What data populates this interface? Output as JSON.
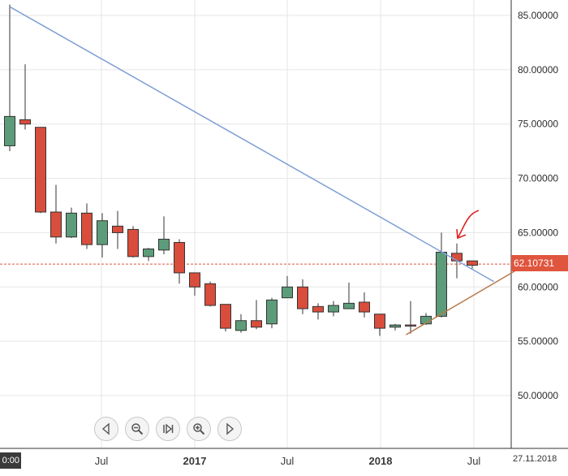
{
  "chart_data": {
    "type": "candlestick",
    "x_tick_labels": [
      "Jul",
      "2017",
      "Jul",
      "2018",
      "Jul"
    ],
    "y_tick_labels": [
      "50.00000",
      "55.00000",
      "60.00000",
      "65.00000",
      "70.00000",
      "75.00000",
      "80.00000",
      "85.00000"
    ],
    "ylim": [
      46.0,
      87.0
    ],
    "grid": true,
    "last_price": "62.10731",
    "last_price_value": 62.10731,
    "bottom_left_label": "0:00",
    "bottom_right_label": "27.11.2018",
    "candles": [
      {
        "o": 73.0,
        "h": 86.0,
        "l": 72.5,
        "c": 75.7
      },
      {
        "o": 75.4,
        "h": 80.5,
        "l": 74.5,
        "c": 75.0
      },
      {
        "o": 74.7,
        "h": 74.7,
        "l": 66.8,
        "c": 66.9
      },
      {
        "o": 66.9,
        "h": 69.4,
        "l": 64.0,
        "c": 64.6
      },
      {
        "o": 64.6,
        "h": 67.3,
        "l": 64.5,
        "c": 66.8
      },
      {
        "o": 66.8,
        "h": 67.7,
        "l": 63.5,
        "c": 63.9
      },
      {
        "o": 63.9,
        "h": 66.8,
        "l": 62.7,
        "c": 66.1
      },
      {
        "o": 65.6,
        "h": 67.0,
        "l": 63.5,
        "c": 65.0
      },
      {
        "o": 65.3,
        "h": 65.6,
        "l": 62.7,
        "c": 62.8
      },
      {
        "o": 62.8,
        "h": 63.6,
        "l": 62.4,
        "c": 63.5
      },
      {
        "o": 63.4,
        "h": 66.5,
        "l": 63.0,
        "c": 64.4
      },
      {
        "o": 64.1,
        "h": 64.4,
        "l": 60.3,
        "c": 61.3
      },
      {
        "o": 61.3,
        "h": 61.3,
        "l": 59.2,
        "c": 60.0
      },
      {
        "o": 60.3,
        "h": 60.5,
        "l": 58.2,
        "c": 58.3
      },
      {
        "o": 58.4,
        "h": 58.4,
        "l": 55.9,
        "c": 56.2
      },
      {
        "o": 56.0,
        "h": 57.5,
        "l": 55.8,
        "c": 56.9
      },
      {
        "o": 56.9,
        "h": 58.8,
        "l": 56.1,
        "c": 56.3
      },
      {
        "o": 56.6,
        "h": 59.0,
        "l": 56.2,
        "c": 58.8
      },
      {
        "o": 59.0,
        "h": 61.0,
        "l": 59.0,
        "c": 60.0
      },
      {
        "o": 60.0,
        "h": 60.7,
        "l": 57.5,
        "c": 58.0
      },
      {
        "o": 58.2,
        "h": 58.5,
        "l": 57.0,
        "c": 57.7
      },
      {
        "o": 57.7,
        "h": 58.7,
        "l": 57.3,
        "c": 58.3
      },
      {
        "o": 58.0,
        "h": 60.4,
        "l": 58.0,
        "c": 58.5
      },
      {
        "o": 58.6,
        "h": 59.5,
        "l": 57.2,
        "c": 57.7
      },
      {
        "o": 57.5,
        "h": 57.5,
        "l": 55.5,
        "c": 56.2
      },
      {
        "o": 56.3,
        "h": 56.6,
        "l": 56.0,
        "c": 56.5
      },
      {
        "o": 56.5,
        "h": 58.7,
        "l": 55.7,
        "c": 56.4
      },
      {
        "o": 56.6,
        "h": 57.6,
        "l": 56.5,
        "c": 57.3
      },
      {
        "o": 57.3,
        "h": 65.0,
        "l": 57.2,
        "c": 63.2
      },
      {
        "o": 63.1,
        "h": 64.0,
        "l": 60.8,
        "c": 62.4
      },
      {
        "o": 62.4,
        "h": 62.4,
        "l": 61.7,
        "c": 62.0
      }
    ],
    "annotations": [
      {
        "kind": "trendline",
        "color": "#7f9fd4",
        "from": {
          "index": 0,
          "value": 85.8
        },
        "to": {
          "index": 31.4,
          "value": 60.5
        }
      },
      {
        "kind": "trendline",
        "color": "#b87a4b",
        "from": {
          "index": 25.7,
          "value": 55.6
        },
        "to": {
          "index": 32.8,
          "value": 61.5
        }
      },
      {
        "kind": "arrow",
        "color": "#e02020",
        "at": {
          "index": 29,
          "value": 64.2
        }
      }
    ]
  },
  "colors": {
    "up": "#5c9c7a",
    "down": "#d94d3c",
    "grid": "#e6e6e6",
    "last_price_line": "#e0553e"
  },
  "toolbar": [
    {
      "name": "scroll-left-button",
      "icon": "triangle-left-icon"
    },
    {
      "name": "zoom-out-button",
      "icon": "zoom-out-icon"
    },
    {
      "name": "reset-button",
      "icon": "reset-icon"
    },
    {
      "name": "zoom-in-button",
      "icon": "zoom-in-icon"
    },
    {
      "name": "scroll-right-button",
      "icon": "triangle-right-icon"
    }
  ]
}
